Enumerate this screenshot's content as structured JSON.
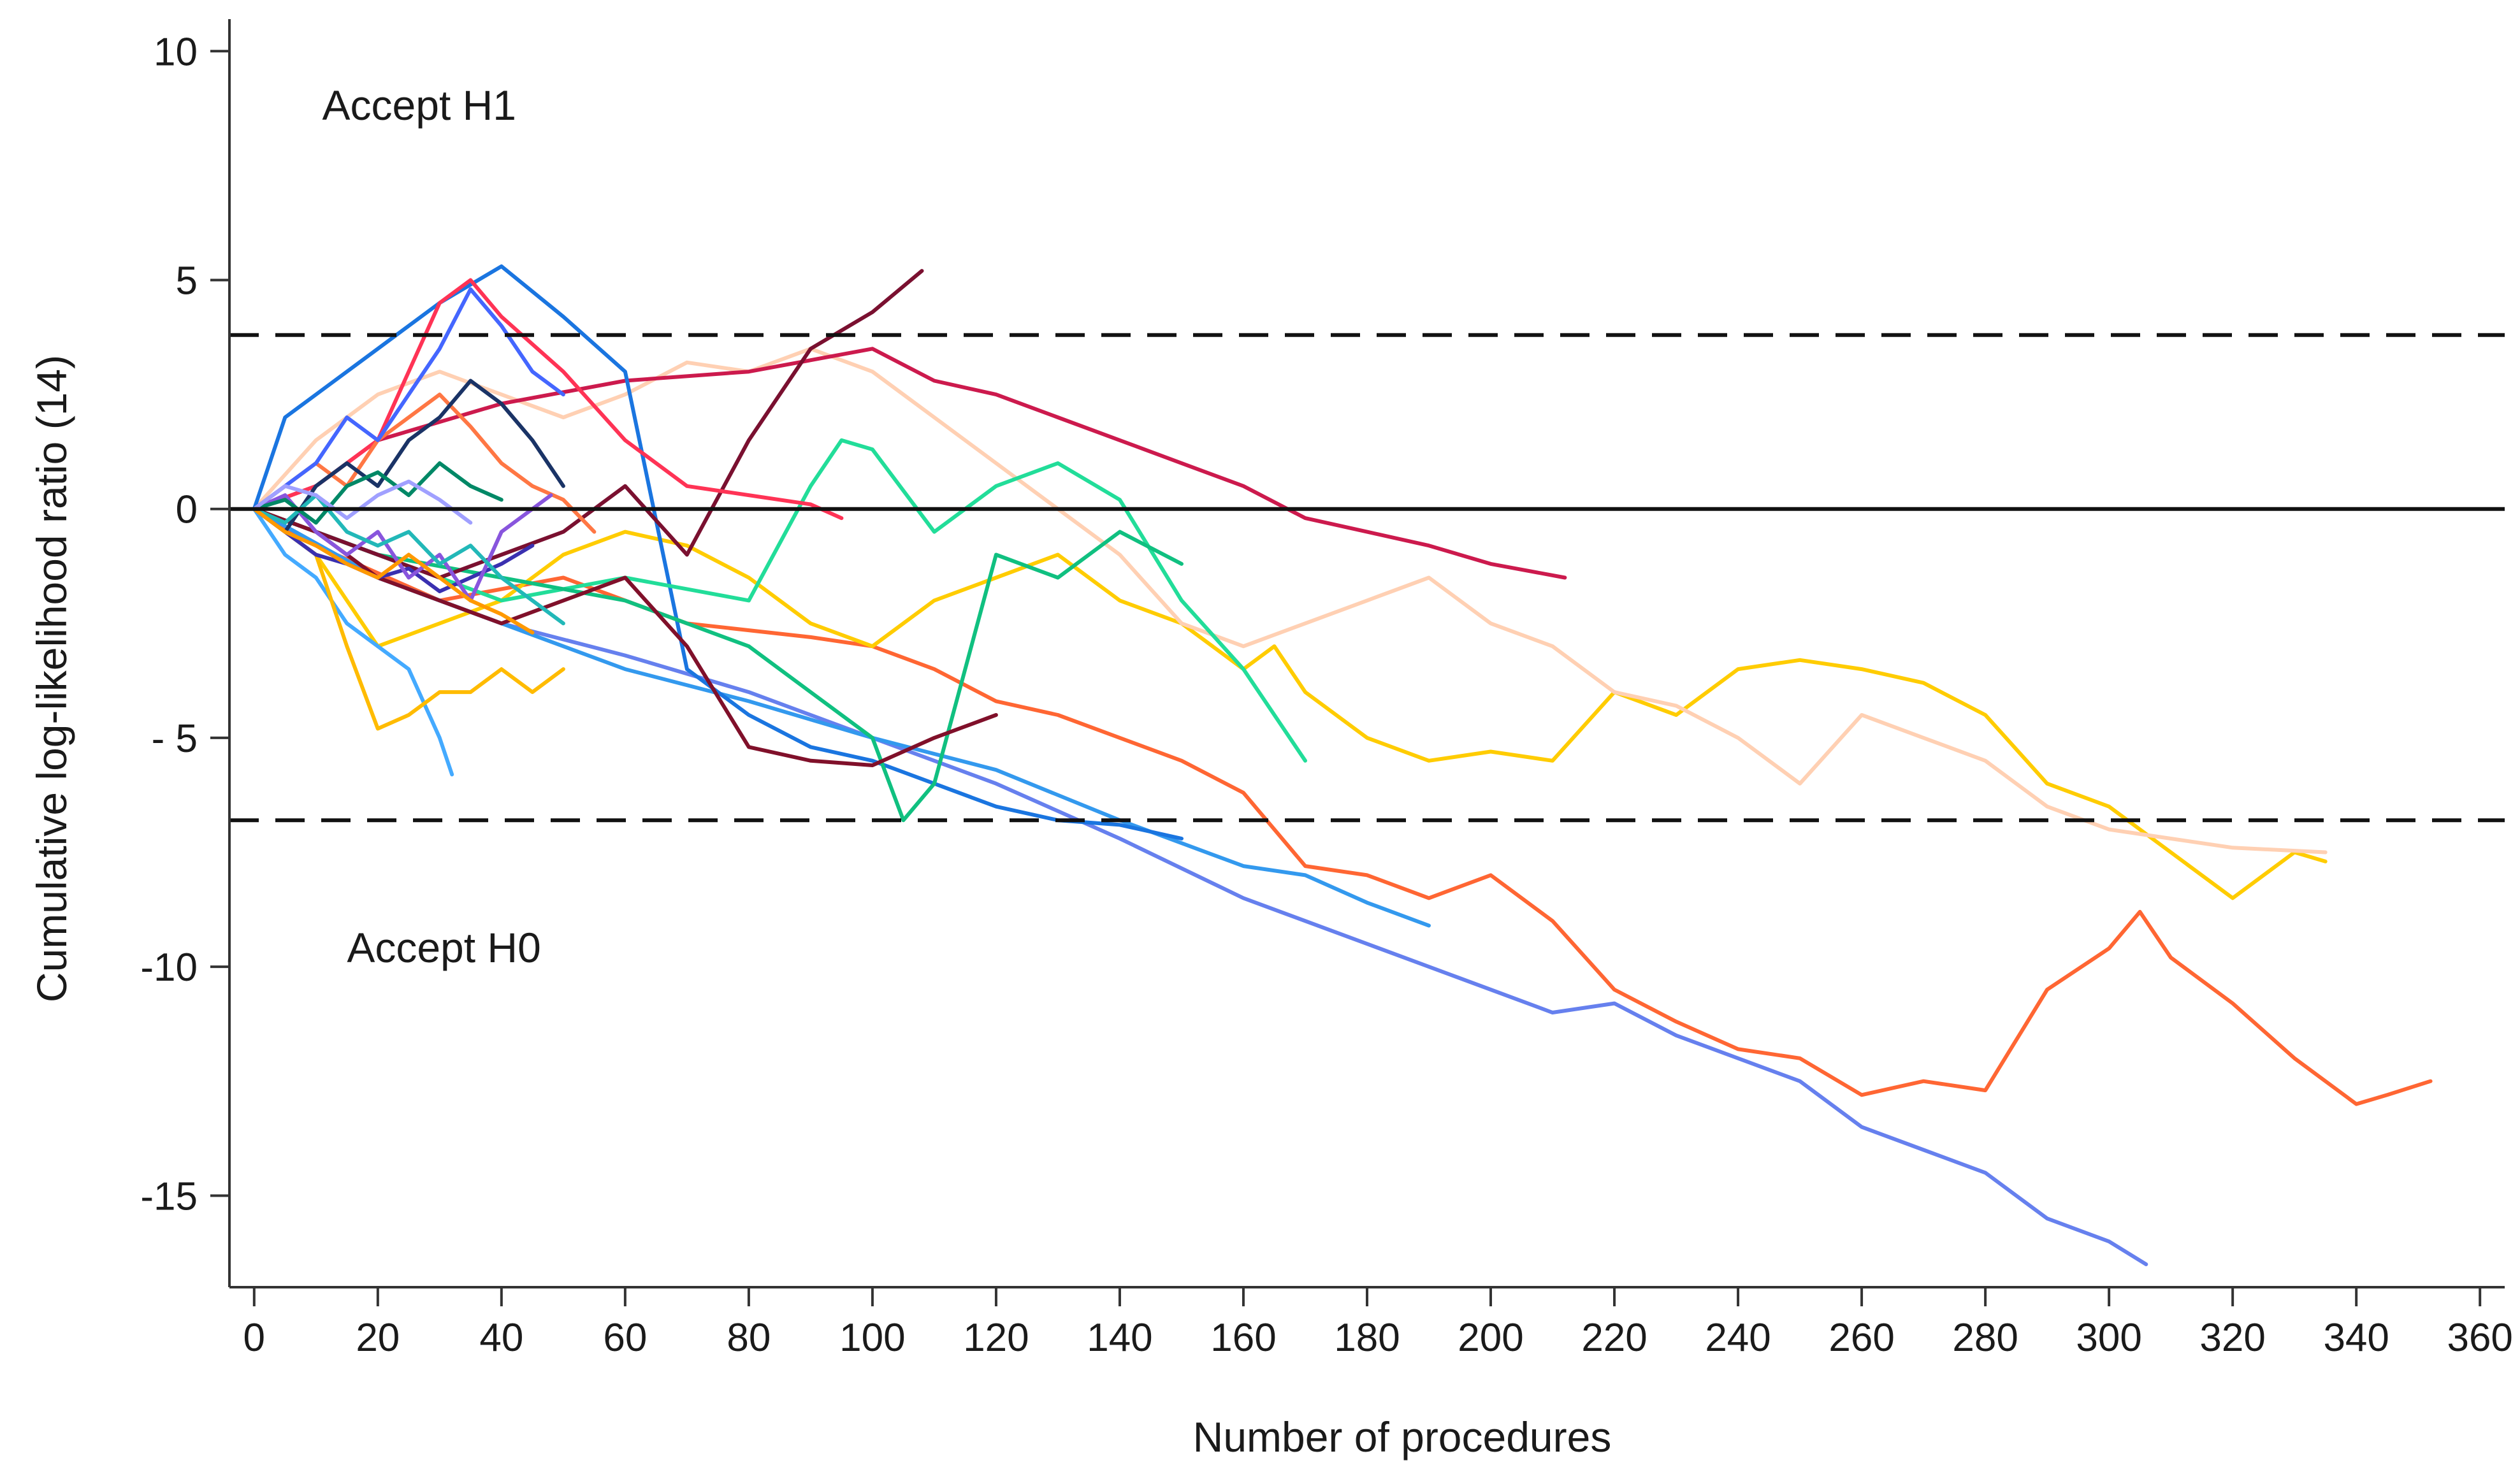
{
  "chart_data": {
    "type": "line",
    "title": "",
    "xlabel": "Number of procedures",
    "ylabel": "Cumulative log-likelihood ratio (14)",
    "xlim": [
      -4,
      364
    ],
    "ylim": [
      -17,
      10.7
    ],
    "xticks": [
      "0",
      "20",
      "40",
      "60",
      "80",
      "100",
      "120",
      "140",
      "160",
      "180",
      "200",
      "220",
      "240",
      "260",
      "280",
      "300",
      "320",
      "340",
      "360"
    ],
    "yticks": [
      "10",
      "5",
      "0",
      "- 5",
      "-10",
      "-15"
    ],
    "ytick_values": [
      10,
      5,
      0,
      -5,
      -10,
      -15
    ],
    "grid": false,
    "legend": "none",
    "reference_lines": [
      {
        "name": "upper-boundary",
        "y": 3.8,
        "style": "dashed"
      },
      {
        "name": "zero-line",
        "y": 0,
        "style": "solid"
      },
      {
        "name": "lower-boundary",
        "y": -6.8,
        "style": "dashed"
      }
    ],
    "annotations": [
      {
        "name": "accept-h1-label",
        "text": "Accept H1",
        "x": 11,
        "y": 8.5
      },
      {
        "name": "accept-h0-label",
        "text": "Accept H0",
        "x": 15,
        "y": -9.9
      }
    ],
    "series": [
      {
        "name": "trainee-1",
        "color": "#ff6633",
        "x": [
          0,
          10,
          30,
          50,
          70,
          90,
          100,
          110,
          120,
          130,
          140,
          150,
          160,
          170,
          180,
          190,
          200,
          210,
          220,
          230,
          240,
          250,
          260,
          270,
          280,
          290,
          300,
          305,
          310,
          320,
          330,
          340,
          345,
          352
        ],
        "y": [
          0,
          -0.8,
          -2,
          -1.5,
          -2.5,
          -2.8,
          -3,
          -3.5,
          -4.2,
          -4.5,
          -5,
          -5.5,
          -6.2,
          -7.8,
          -8,
          -8.5,
          -8,
          -9,
          -10.5,
          -11.2,
          -11.8,
          -12,
          -12.8,
          -12.5,
          -12.7,
          -10.5,
          -9.6,
          -8.8,
          -9.8,
          -10.8,
          -12,
          -13,
          -12.8,
          -12.5
        ]
      },
      {
        "name": "trainee-2",
        "color": "#ffcc00",
        "x": [
          0,
          10,
          20,
          30,
          40,
          50,
          60,
          70,
          80,
          90,
          100,
          110,
          120,
          130,
          140,
          150,
          160,
          165,
          170,
          180,
          190,
          200,
          210,
          220,
          230,
          240,
          250,
          260,
          270,
          280,
          290,
          300,
          310,
          320,
          330,
          335
        ],
        "y": [
          0,
          -1,
          -3,
          -2.5,
          -2,
          -1,
          -0.5,
          -0.8,
          -1.5,
          -2.5,
          -3,
          -2,
          -1.5,
          -1,
          -2,
          -2.5,
          -3.5,
          -3,
          -4,
          -5,
          -5.5,
          -5.3,
          -5.5,
          -4,
          -4.5,
          -3.5,
          -3.3,
          -3.5,
          -3.8,
          -4.5,
          -6,
          -6.5,
          -7.5,
          -8.5,
          -7.5,
          -7.7
        ]
      },
      {
        "name": "trainee-3",
        "color": "#ffd0b3",
        "x": [
          0,
          10,
          20,
          30,
          40,
          50,
          60,
          70,
          80,
          90,
          100,
          110,
          120,
          130,
          140,
          150,
          160,
          170,
          180,
          190,
          200,
          210,
          220,
          230,
          240,
          250,
          260,
          270,
          280,
          290,
          300,
          310,
          320,
          335
        ],
        "y": [
          0,
          1.5,
          2.5,
          3,
          2.5,
          2,
          2.5,
          3.2,
          3,
          3.5,
          3,
          2,
          1,
          0,
          -1,
          -2.5,
          -3,
          -2.5,
          -2,
          -1.5,
          -2.5,
          -3,
          -4,
          -4.3,
          -5,
          -6,
          -4.5,
          -5,
          -5.5,
          -6.5,
          -7,
          -7.2,
          -7.4,
          -7.5
        ]
      },
      {
        "name": "trainee-4",
        "color": "#cc1a4d",
        "x": [
          0,
          10,
          20,
          40,
          60,
          80,
          100,
          110,
          120,
          130,
          140,
          150,
          160,
          170,
          180,
          190,
          200,
          212
        ],
        "y": [
          0,
          0.5,
          1.5,
          2.3,
          2.8,
          3,
          3.5,
          2.8,
          2.5,
          2,
          1.5,
          1,
          0.5,
          -0.2,
          -0.5,
          -0.8,
          -1.2,
          -1.5
        ]
      },
      {
        "name": "trainee-5",
        "color": "#6680ee",
        "x": [
          0,
          20,
          40,
          60,
          80,
          100,
          120,
          140,
          160,
          180,
          200,
          210,
          220,
          230,
          240,
          250,
          260,
          270,
          280,
          290,
          300,
          306
        ],
        "y": [
          0,
          -1.5,
          -2.5,
          -3.2,
          -4,
          -5,
          -6,
          -7.2,
          -8.5,
          -9.5,
          -10.5,
          -11,
          -10.8,
          -11.5,
          -12,
          -12.5,
          -13.5,
          -14,
          -14.5,
          -15.5,
          -16,
          -16.5
        ]
      },
      {
        "name": "trainee-6",
        "color": "#3399ee",
        "x": [
          0,
          20,
          40,
          60,
          80,
          100,
          120,
          140,
          160,
          170,
          180,
          190
        ],
        "y": [
          0,
          -1.5,
          -2.5,
          -3.5,
          -4.2,
          -5,
          -5.7,
          -6.8,
          -7.8,
          -8,
          -8.6,
          -9.1
        ]
      },
      {
        "name": "trainee-7",
        "color": "#1a75e0",
        "x": [
          0,
          5,
          10,
          20,
          30,
          40,
          50,
          60,
          70,
          80,
          90,
          100,
          110,
          120,
          130,
          140,
          150
        ],
        "y": [
          0,
          2,
          2.5,
          3.5,
          4.5,
          5.3,
          4.2,
          3,
          -3.5,
          -4.5,
          -5.2,
          -5.5,
          -6,
          -6.5,
          -6.8,
          -6.9,
          -7.2
        ]
      },
      {
        "name": "trainee-8",
        "color": "#22dd99",
        "x": [
          0,
          20,
          40,
          60,
          80,
          90,
          95,
          100,
          110,
          120,
          130,
          140,
          150,
          160,
          170
        ],
        "y": [
          0,
          -1,
          -2,
          -1.5,
          -2,
          0.5,
          1.5,
          1.3,
          -0.5,
          0.5,
          1,
          0.2,
          -2,
          -3.5,
          -5.5
        ]
      },
      {
        "name": "trainee-9",
        "color": "#10c080",
        "x": [
          0,
          20,
          40,
          60,
          70,
          80,
          90,
          100,
          105,
          110,
          120,
          130,
          140,
          150
        ],
        "y": [
          0,
          -1,
          -1.5,
          -2,
          -2.5,
          -3,
          -4,
          -5,
          -6.8,
          -6,
          -1,
          -1.5,
          -0.5,
          -1.2
        ]
      },
      {
        "name": "trainee-10",
        "color": "#7a1030",
        "x": [
          0,
          10,
          20,
          30,
          40,
          50,
          60,
          70,
          80,
          85,
          90,
          100,
          108
        ],
        "y": [
          0,
          -0.5,
          -1,
          -1.5,
          -1,
          -0.5,
          0.5,
          -1,
          1.5,
          2.5,
          3.5,
          4.3,
          5.2
        ]
      },
      {
        "name": "trainee-11",
        "color": "#80102a",
        "x": [
          0,
          10,
          20,
          30,
          40,
          50,
          60,
          70,
          80,
          90,
          100,
          110,
          120
        ],
        "y": [
          0,
          -0.5,
          -1.5,
          -2,
          -2.5,
          -2,
          -1.5,
          -3,
          -5.2,
          -5.5,
          -5.6,
          -5,
          -4.5
        ]
      },
      {
        "name": "trainee-12",
        "color": "#ff3355",
        "x": [
          0,
          10,
          20,
          25,
          30,
          35,
          40,
          50,
          60,
          70,
          80,
          90,
          95
        ],
        "y": [
          0,
          0.5,
          1.5,
          3,
          4.5,
          5,
          4.2,
          3,
          1.5,
          0.5,
          0.3,
          0.1,
          -0.2
        ]
      },
      {
        "name": "trainee-13",
        "color": "#ff7744",
        "x": [
          0,
          5,
          10,
          15,
          20,
          25,
          30,
          35,
          40,
          45,
          50,
          55
        ],
        "y": [
          0,
          0.5,
          1,
          0.5,
          1.5,
          2,
          2.5,
          1.8,
          1,
          0.5,
          0.2,
          -0.5
        ]
      },
      {
        "name": "trainee-14",
        "color": "#1a3366",
        "x": [
          0,
          5,
          10,
          15,
          20,
          25,
          30,
          35,
          40,
          45,
          50
        ],
        "y": [
          0,
          -0.5,
          0.5,
          1,
          0.5,
          1.5,
          2,
          2.8,
          2.3,
          1.5,
          0.5
        ]
      },
      {
        "name": "trainee-15",
        "color": "#4466ff",
        "x": [
          0,
          5,
          10,
          15,
          20,
          25,
          30,
          35,
          40,
          45,
          50
        ],
        "y": [
          0,
          0.5,
          1,
          2,
          1.5,
          2.5,
          3.5,
          4.8,
          4,
          3,
          2.5
        ]
      },
      {
        "name": "trainee-16",
        "color": "#44aaff",
        "x": [
          0,
          5,
          10,
          15,
          20,
          25,
          30,
          32
        ],
        "y": [
          0,
          -1,
          -1.5,
          -2.5,
          -3,
          -3.5,
          -5,
          -5.8
        ]
      },
      {
        "name": "trainee-17",
        "color": "#ffbb00",
        "x": [
          0,
          5,
          10,
          15,
          20,
          25,
          30,
          35,
          40,
          45,
          50
        ],
        "y": [
          0,
          -0.5,
          -1,
          -3,
          -4.8,
          -4.5,
          -4,
          -4,
          -3.5,
          -4,
          -3.5
        ]
      },
      {
        "name": "trainee-18",
        "color": "#3a30b0",
        "x": [
          0,
          5,
          10,
          15,
          20,
          25,
          30,
          35,
          40,
          45
        ],
        "y": [
          0,
          -0.5,
          -1,
          -1.2,
          -1.5,
          -1.3,
          -1.8,
          -1.5,
          -1.2,
          -0.8
        ]
      },
      {
        "name": "trainee-19",
        "color": "#8855dd",
        "x": [
          0,
          5,
          10,
          15,
          20,
          25,
          30,
          35,
          40,
          48
        ],
        "y": [
          0,
          0.3,
          -0.5,
          -1,
          -0.5,
          -1.5,
          -1,
          -2,
          -0.5,
          0.3
        ]
      },
      {
        "name": "trainee-20",
        "color": "#22b8b8",
        "x": [
          0,
          5,
          10,
          15,
          20,
          25,
          30,
          35,
          40,
          45,
          50
        ],
        "y": [
          0,
          -0.3,
          0.3,
          -0.5,
          -0.8,
          -0.5,
          -1.2,
          -0.8,
          -1.5,
          -2,
          -2.5
        ]
      },
      {
        "name": "trainee-21",
        "color": "#ff9900",
        "x": [
          0,
          5,
          10,
          15,
          20,
          25,
          30,
          35,
          40,
          45
        ],
        "y": [
          0,
          -0.5,
          -0.8,
          -1.2,
          -1.5,
          -1,
          -1.5,
          -2,
          -2.3,
          -2.7
        ]
      },
      {
        "name": "trainee-22",
        "color": "#008866",
        "x": [
          0,
          5,
          10,
          15,
          20,
          25,
          30,
          35,
          40
        ],
        "y": [
          0,
          0.2,
          -0.3,
          0.5,
          0.8,
          0.3,
          1,
          0.5,
          0.2
        ]
      },
      {
        "name": "trainee-23",
        "color": "#a0a0ff",
        "x": [
          0,
          5,
          10,
          15,
          20,
          25,
          30,
          35
        ],
        "y": [
          0,
          0.5,
          0.3,
          -0.2,
          0.3,
          0.6,
          0.2,
          -0.3
        ]
      }
    ]
  }
}
